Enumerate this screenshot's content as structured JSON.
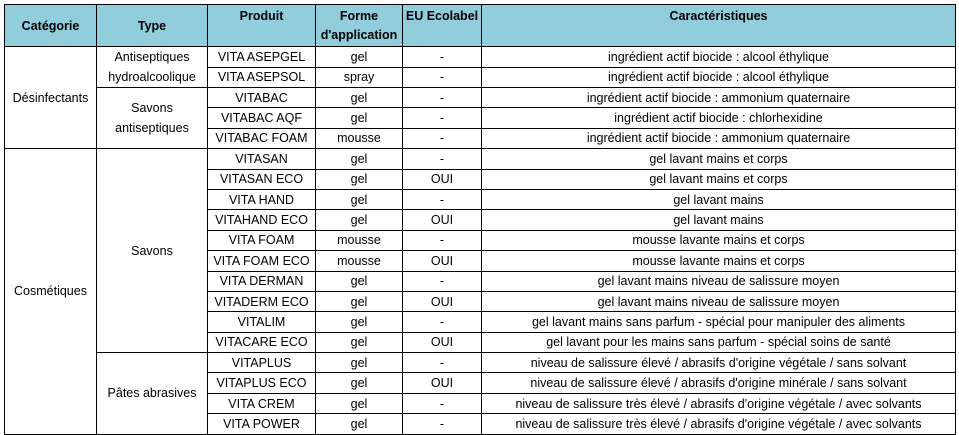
{
  "table": {
    "headers": {
      "categorie": "Catégorie",
      "type": "Type",
      "produit": "Produit",
      "forme": "Forme d'application",
      "ecolabel": "EU Ecolabel",
      "caracteristiques": "Caractéristiques"
    },
    "categories": [
      "Désinfectants",
      "Cosmétiques"
    ],
    "types": [
      "Antiseptiques hydroalcoolique",
      "Savons antiseptiques",
      "Savons",
      "Pâtes abrasives"
    ],
    "rows": [
      {
        "produit": "VITA ASEPGEL",
        "forme": "gel",
        "ecolabel": "-",
        "caracteristiques": "ingrédient actif biocide : alcool éthylique"
      },
      {
        "produit": "VITA ASEPSOL",
        "forme": "spray",
        "ecolabel": "-",
        "caracteristiques": "ingrédient actif biocide : alcool éthylique"
      },
      {
        "produit": "VITABAC",
        "forme": "gel",
        "ecolabel": "-",
        "caracteristiques": "ingrédient actif biocide : ammonium quaternaire"
      },
      {
        "produit": "VITABAC AQF",
        "forme": "gel",
        "ecolabel": "-",
        "caracteristiques": "ingrédient actif biocide : chlorhexidine"
      },
      {
        "produit": "VITABAC FOAM",
        "forme": "mousse",
        "ecolabel": "-",
        "caracteristiques": "ingrédient actif biocide : ammonium quaternaire"
      },
      {
        "produit": "VITASAN",
        "forme": "gel",
        "ecolabel": "-",
        "caracteristiques": "gel lavant mains et corps"
      },
      {
        "produit": "VITASAN ECO",
        "forme": "gel",
        "ecolabel": "OUI",
        "caracteristiques": "gel lavant mains et corps"
      },
      {
        "produit": "VITA HAND",
        "forme": "gel",
        "ecolabel": "-",
        "caracteristiques": "gel lavant mains"
      },
      {
        "produit": "VITAHAND ECO",
        "forme": "gel",
        "ecolabel": "OUI",
        "caracteristiques": "gel lavant mains"
      },
      {
        "produit": "VITA FOAM",
        "forme": "mousse",
        "ecolabel": "-",
        "caracteristiques": "mousse lavante mains et corps"
      },
      {
        "produit": "VITA FOAM ECO",
        "forme": "mousse",
        "ecolabel": "OUI",
        "caracteristiques": "mousse lavante mains et corps"
      },
      {
        "produit": "VITA DERMAN",
        "forme": "gel",
        "ecolabel": "-",
        "caracteristiques": "gel lavant mains niveau de salissure moyen"
      },
      {
        "produit": "VITADERM ECO",
        "forme": "gel",
        "ecolabel": "OUI",
        "caracteristiques": "gel lavant mains niveau de salissure moyen"
      },
      {
        "produit": "VITALIM",
        "forme": "gel",
        "ecolabel": "-",
        "caracteristiques": "gel lavant mains sans parfum - spécial pour manipuler des aliments"
      },
      {
        "produit": "VITACARE ECO",
        "forme": "gel",
        "ecolabel": "OUI",
        "caracteristiques": "gel lavant pour les mains sans parfum - spécial soins de santé"
      },
      {
        "produit": "VITAPLUS",
        "forme": "gel",
        "ecolabel": "-",
        "caracteristiques": "niveau de salissure élevé / abrasifs d'origine végétale / sans solvant"
      },
      {
        "produit": "VITAPLUS ECO",
        "forme": "gel",
        "ecolabel": "OUI",
        "caracteristiques": "niveau de salissure élevé / abrasifs d'origine minérale / sans solvant"
      },
      {
        "produit": "VITA CREM",
        "forme": "gel",
        "ecolabel": "-",
        "caracteristiques": "niveau de salissure très élevé / abrasifs d'origine végétale / avec solvants"
      },
      {
        "produit": "VITA POWER",
        "forme": "gel",
        "ecolabel": "-",
        "caracteristiques": "niveau de salissure très élevé / abrasifs d'origine végétale / avec solvants"
      }
    ]
  },
  "colors": {
    "header_background": "#92CDDC",
    "border": "#000000"
  }
}
